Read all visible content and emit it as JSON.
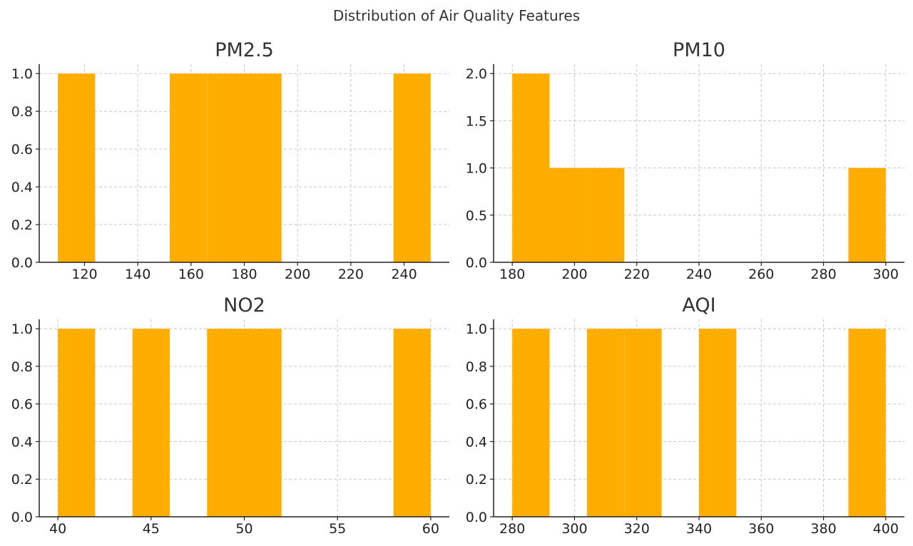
{
  "figure": {
    "title": "Distribution of Air Quality Features"
  },
  "colors": {
    "bar": "#FFAE00",
    "grid": "#c8c8c8",
    "axis": "#222222"
  },
  "chart_data": [
    {
      "type": "bar",
      "title": "PM2.5",
      "xlabel": "",
      "ylabel": "",
      "grid": true,
      "xlim": [
        103,
        257
      ],
      "ylim": [
        0,
        1.05
      ],
      "xticks": [
        "120",
        "140",
        "160",
        "180",
        "200",
        "220",
        "240"
      ],
      "xtick_values": [
        120,
        140,
        160,
        180,
        200,
        220,
        240
      ],
      "yticks": [
        "0.0",
        "0.2",
        "0.4",
        "0.6",
        "0.8",
        "1.0"
      ],
      "ytick_values": [
        0,
        0.2,
        0.4,
        0.6,
        0.8,
        1.0
      ],
      "bins": [
        {
          "x0": 110,
          "x1": 124,
          "count": 1
        },
        {
          "x0": 152,
          "x1": 166,
          "count": 1
        },
        {
          "x0": 166,
          "x1": 180,
          "count": 1
        },
        {
          "x0": 180,
          "x1": 194,
          "count": 1
        },
        {
          "x0": 236,
          "x1": 250,
          "count": 1
        }
      ]
    },
    {
      "type": "bar",
      "title": "PM10",
      "xlabel": "",
      "ylabel": "",
      "grid": true,
      "xlim": [
        174,
        306
      ],
      "ylim": [
        0,
        2.1
      ],
      "xticks": [
        "180",
        "200",
        "220",
        "240",
        "260",
        "280",
        "300"
      ],
      "xtick_values": [
        180,
        200,
        220,
        240,
        260,
        280,
        300
      ],
      "yticks": [
        "0.0",
        "0.5",
        "1.0",
        "1.5",
        "2.0"
      ],
      "ytick_values": [
        0,
        0.5,
        1.0,
        1.5,
        2.0
      ],
      "bins": [
        {
          "x0": 180,
          "x1": 192,
          "count": 2
        },
        {
          "x0": 192,
          "x1": 204,
          "count": 1
        },
        {
          "x0": 204,
          "x1": 216,
          "count": 1
        },
        {
          "x0": 288,
          "x1": 300,
          "count": 1
        }
      ]
    },
    {
      "type": "bar",
      "title": "NO2",
      "xlabel": "",
      "ylabel": "",
      "grid": true,
      "xlim": [
        39,
        61
      ],
      "ylim": [
        0,
        1.05
      ],
      "xticks": [
        "40",
        "45",
        "50",
        "55",
        "60"
      ],
      "xtick_values": [
        40,
        45,
        50,
        55,
        60
      ],
      "yticks": [
        "0.0",
        "0.2",
        "0.4",
        "0.6",
        "0.8",
        "1.0"
      ],
      "ytick_values": [
        0,
        0.2,
        0.4,
        0.6,
        0.8,
        1.0
      ],
      "bins": [
        {
          "x0": 40,
          "x1": 42,
          "count": 1
        },
        {
          "x0": 44,
          "x1": 46,
          "count": 1
        },
        {
          "x0": 48,
          "x1": 50,
          "count": 1
        },
        {
          "x0": 50,
          "x1": 52,
          "count": 1
        },
        {
          "x0": 58,
          "x1": 60,
          "count": 1
        }
      ]
    },
    {
      "type": "bar",
      "title": "AQI",
      "xlabel": "",
      "ylabel": "",
      "grid": true,
      "xlim": [
        274,
        406
      ],
      "ylim": [
        0,
        1.05
      ],
      "xticks": [
        "280",
        "300",
        "320",
        "340",
        "360",
        "380",
        "400"
      ],
      "xtick_values": [
        280,
        300,
        320,
        340,
        360,
        380,
        400
      ],
      "yticks": [
        "0.0",
        "0.2",
        "0.4",
        "0.6",
        "0.8",
        "1.0"
      ],
      "ytick_values": [
        0,
        0.2,
        0.4,
        0.6,
        0.8,
        1.0
      ],
      "bins": [
        {
          "x0": 280,
          "x1": 292,
          "count": 1
        },
        {
          "x0": 304,
          "x1": 316,
          "count": 1
        },
        {
          "x0": 316,
          "x1": 328,
          "count": 1
        },
        {
          "x0": 340,
          "x1": 352,
          "count": 1
        },
        {
          "x0": 388,
          "x1": 400,
          "count": 1
        }
      ]
    }
  ]
}
